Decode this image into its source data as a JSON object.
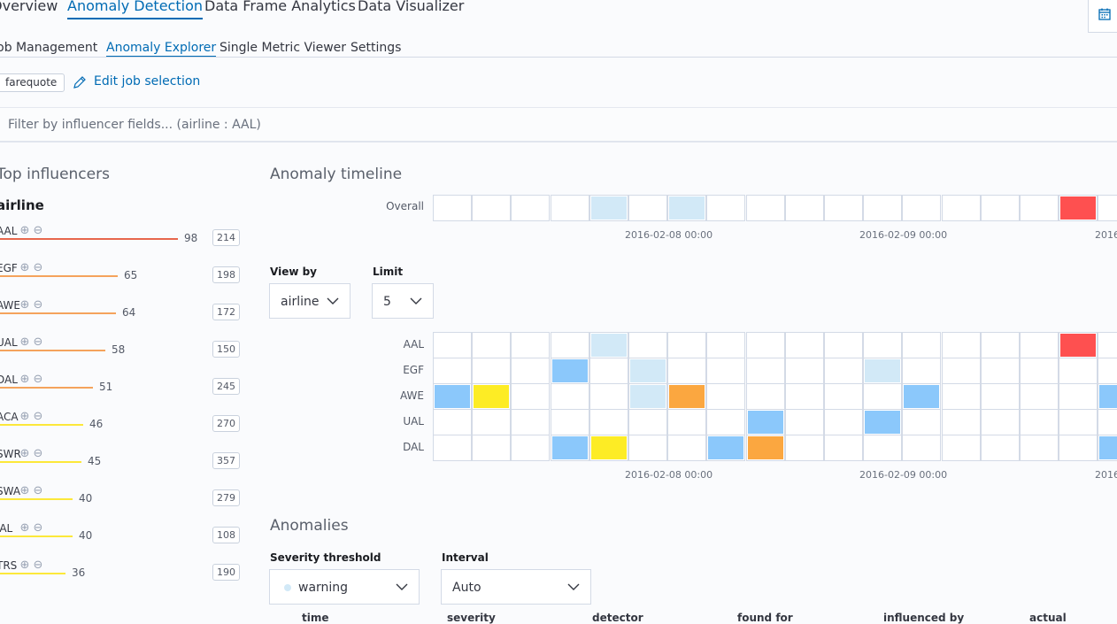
{
  "nav": {
    "tabs": [
      {
        "label": "Overview",
        "active": false
      },
      {
        "label": "Anomaly Detection",
        "active": true
      },
      {
        "label": "Data Frame Analytics",
        "active": false
      },
      {
        "label": "Data Visualizer",
        "active": false
      }
    ],
    "subtabs": [
      {
        "label": "Job Management",
        "active": false
      },
      {
        "label": "Anomaly Explorer",
        "active": true
      },
      {
        "label": "Single Metric Viewer",
        "active": false
      },
      {
        "label": "Settings",
        "active": false
      }
    ]
  },
  "job": {
    "badge": "farequote",
    "edit_label": "Edit job selection"
  },
  "filter": {
    "placeholder": "Filter by influencer fields... (airline : AAL)"
  },
  "influencers": {
    "title": "Top influencers",
    "field": "airline",
    "max_score": 100,
    "items": [
      {
        "name": "AAL",
        "score": 98,
        "count": 214,
        "color": "#e7664c"
      },
      {
        "name": "EGF",
        "score": 65,
        "count": 198,
        "color": "#f5a35c"
      },
      {
        "name": "AWE",
        "score": 64,
        "count": 172,
        "color": "#f5a35c"
      },
      {
        "name": "UAL",
        "score": 58,
        "count": 150,
        "color": "#f5a35c"
      },
      {
        "name": "DAL",
        "score": 51,
        "count": 245,
        "color": "#f5a35c"
      },
      {
        "name": "ACA",
        "score": 46,
        "count": 270,
        "color": "#fce83a"
      },
      {
        "name": "SWR",
        "score": 45,
        "count": 357,
        "color": "#fce83a"
      },
      {
        "name": "SWA",
        "score": 40,
        "count": 279,
        "color": "#fce83a"
      },
      {
        "name": "JAL",
        "score": 40,
        "count": 108,
        "color": "#fce83a"
      },
      {
        "name": "TRS",
        "score": 36,
        "count": 190,
        "color": "#fce83a"
      }
    ]
  },
  "timeline": {
    "title": "Anomaly timeline",
    "overall_label": "Overall",
    "overall": [
      "",
      "",
      "",
      "",
      "light",
      "",
      "light",
      "",
      "",
      "",
      "",
      "",
      "",
      "",
      "",
      "",
      "red",
      "partial"
    ],
    "ticks": [
      "2016-02-08 00:00",
      "2016-02-09 00:00",
      "2016"
    ],
    "view_by": {
      "label": "View by",
      "value": "airline"
    },
    "limit": {
      "label": "Limit",
      "value": "5"
    },
    "rows": [
      {
        "label": "AAL",
        "cells": [
          "",
          "",
          "",
          "",
          "light",
          "",
          "",
          "",
          "",
          "",
          "",
          "",
          "",
          "",
          "",
          "",
          "red",
          ""
        ]
      },
      {
        "label": "EGF",
        "cells": [
          "",
          "",
          "",
          "blue",
          "",
          "light",
          "",
          "",
          "",
          "",
          "",
          "light",
          "",
          "",
          "",
          "",
          "",
          ""
        ]
      },
      {
        "label": "AWE",
        "cells": [
          "blue",
          "yellow",
          "",
          "",
          "",
          "light",
          "orange",
          "",
          "",
          "",
          "",
          "",
          "blue",
          "",
          "",
          "",
          "",
          "blue"
        ]
      },
      {
        "label": "UAL",
        "cells": [
          "",
          "",
          "",
          "",
          "",
          "",
          "",
          "",
          "blue",
          "",
          "",
          "blue",
          "",
          "",
          "",
          "",
          "",
          ""
        ]
      },
      {
        "label": "DAL",
        "cells": [
          "",
          "",
          "",
          "blue",
          "yellow",
          "",
          "",
          "blue",
          "orange",
          "",
          "",
          "",
          "",
          "",
          "",
          "",
          "",
          "blue"
        ]
      }
    ],
    "severity_colors": {
      "light": "#d2e9f7",
      "blue": "#8bc8fb",
      "yellow": "#fdec25",
      "orange": "#fba740",
      "red": "#fe5050"
    }
  },
  "anomalies": {
    "title": "Anomalies",
    "severity": {
      "label": "Severity threshold",
      "value": "warning"
    },
    "interval": {
      "label": "Interval",
      "value": "Auto"
    },
    "columns": [
      "time",
      "severity",
      "detector",
      "found for",
      "influenced by",
      "actual"
    ]
  }
}
